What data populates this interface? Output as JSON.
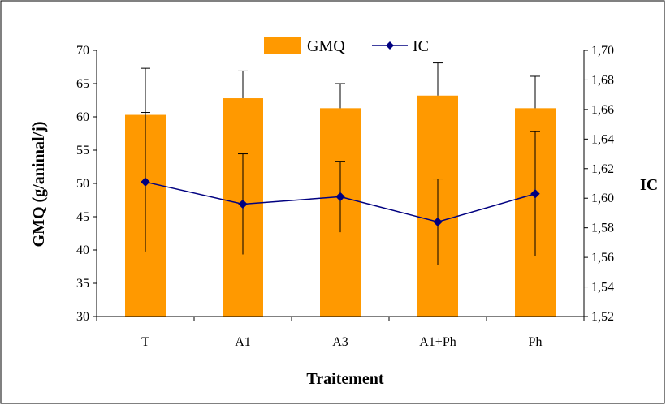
{
  "chart_data": {
    "type": "bar",
    "categories": [
      "T",
      "A1",
      "A3",
      "A1+Ph",
      "Ph"
    ],
    "xlabel": "Traitement",
    "ylabel": "GMQ (g/animal/j)",
    "y2label": "IC",
    "ylim": [
      30,
      70
    ],
    "yticks": [
      "30",
      "35",
      "40",
      "45",
      "50",
      "55",
      "60",
      "65",
      "70"
    ],
    "y2lim": [
      1.52,
      1.7
    ],
    "y2ticks": [
      "1,52",
      "1,54",
      "1,56",
      "1,58",
      "1,60",
      "1,62",
      "1,64",
      "1,66",
      "1,68",
      "1,70"
    ],
    "legend_position": "top-center",
    "colors": {
      "bar": "#FF9900",
      "line": "#000080",
      "axis": "#000000"
    },
    "series": [
      {
        "name": "GMQ",
        "type": "bar",
        "axis": "left",
        "values": [
          60.3,
          62.8,
          61.3,
          63.2,
          61.3
        ],
        "error": [
          7.0,
          4.1,
          3.7,
          4.9,
          4.8
        ]
      },
      {
        "name": "IC",
        "type": "line",
        "axis": "right",
        "values": [
          1.611,
          1.596,
          1.601,
          1.584,
          1.603
        ],
        "error": [
          0.047,
          0.034,
          0.024,
          0.029,
          0.042
        ]
      }
    ]
  }
}
